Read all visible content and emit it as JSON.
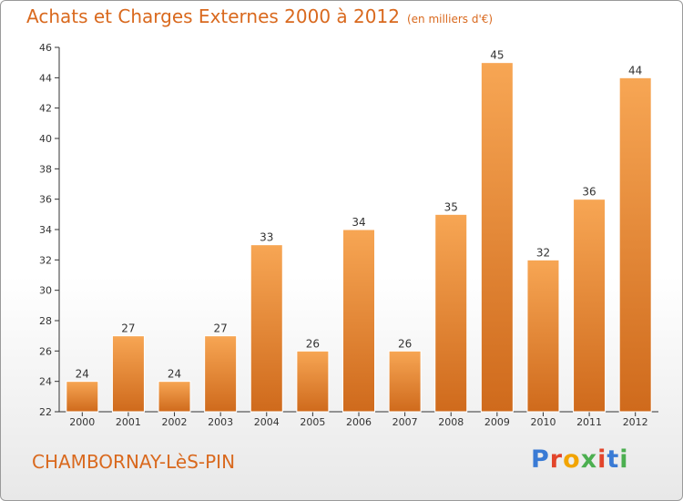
{
  "header": {
    "title": "Achats et Charges Externes 2000 à 2012",
    "subtitle": "(en milliers d'€)"
  },
  "footer": {
    "town": "CHAMBORNAY-LèS-PIN",
    "logo": "Proxiti"
  },
  "colors": {
    "accent": "#d9691e",
    "bar_top": "#f7a654",
    "bar_bottom": "#cf6a1c",
    "logo_letters": [
      "#3a7bd5",
      "#e2452b",
      "#f2a400",
      "#4caf50",
      "#e2452b",
      "#3a7bd5",
      "#4caf50"
    ]
  },
  "chart_data": {
    "type": "bar",
    "title": "Achats et Charges Externes 2000 à 2012",
    "subtitle": "(en milliers d'€)",
    "categories": [
      "2000",
      "2001",
      "2002",
      "2003",
      "2004",
      "2005",
      "2006",
      "2007",
      "2008",
      "2009",
      "2010",
      "2011",
      "2012"
    ],
    "values": [
      24,
      27,
      24,
      27,
      33,
      26,
      34,
      26,
      35,
      45,
      32,
      36,
      44
    ],
    "ylim": [
      22,
      46
    ],
    "yticks": [
      22,
      24,
      26,
      28,
      30,
      32,
      34,
      36,
      38,
      40,
      42,
      44,
      46
    ],
    "grid": false,
    "legend": "none"
  }
}
